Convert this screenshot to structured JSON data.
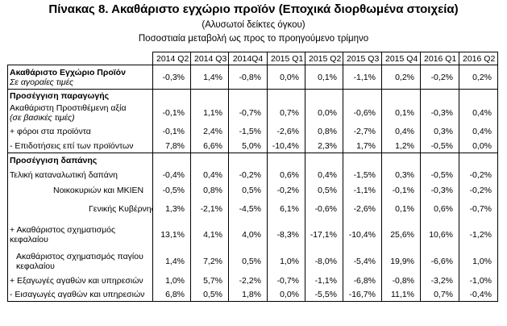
{
  "title": "Πίνακας 8. Ακαθάριστο εγχώριο προϊόν   (Εποχικά διορθωμένα στοιχεία)",
  "subtitle": "(Αλυσωτοί δείκτες όγκου)",
  "note": "Ποσοστιαία μεταβολή ως προς το προηγούμενο τρίμηνο",
  "columns": [
    "2014 Q2",
    "2014 Q3",
    "2014Q4",
    "2015 Q1",
    "2015 Q2",
    "2015 Q3",
    "2015 Q4",
    "2016 Q1",
    "2016 Q2"
  ],
  "rows": [
    {
      "label": "Ακαθάριστο Εγχώριο Προϊόν",
      "label2": "Σε αγοραίες τιμές",
      "values": [
        "-0,3%",
        "1,4%",
        "-0,8%",
        "0,0%",
        "0,1%",
        "-1,1%",
        "0,2%",
        "-0,2%",
        "0,2%"
      ]
    },
    {
      "label": "Προσέγγιση παραγωγής",
      "values": [
        "",
        "",
        "",
        "",
        "",
        "",
        "",
        "",
        ""
      ]
    },
    {
      "label": "Ακαθάριστη Προστιθέμενη αξία",
      "label2": "(σε βασικές τιμές)",
      "values": [
        "-0,1%",
        "1,1%",
        "-0,7%",
        "0,7%",
        "0,0%",
        "-0,6%",
        "0,1%",
        "-0,3%",
        "0,4%"
      ]
    },
    {
      "label": "+ φόροι στα προϊόντα",
      "values": [
        "-0,1%",
        "2,4%",
        "-1,5%",
        "-2,6%",
        "0,8%",
        "-2,7%",
        "0,4%",
        "0,3%",
        "0,4%"
      ]
    },
    {
      "label": "- Επιδοτήσεις επί των προϊόντων",
      "values": [
        "7,8%",
        "6,6%",
        "5,0%",
        "-10,4%",
        "2,3%",
        "1,7%",
        "1,2%",
        "-0,5%",
        "0,0%"
      ]
    },
    {
      "label": "Προσέγγιση δαπάνης",
      "values": [
        "",
        "",
        "",
        "",
        "",
        "",
        "",
        "",
        ""
      ]
    },
    {
      "label": "Τελική καταναλωτική δαπάνη",
      "values": [
        "-0,4%",
        "0,4%",
        "-0,2%",
        "0,6%",
        "0,4%",
        "-1,5%",
        "0,3%",
        "-0,5%",
        "-0,2%"
      ]
    },
    {
      "label": "Νοικοκυριών και ΜΚΙΕΝ",
      "values": [
        "-0,5%",
        "0,8%",
        "0,5%",
        "-0,2%",
        "0,5%",
        "-1,1%",
        "-0,1%",
        "-0,3%",
        "-0,2%"
      ]
    },
    {
      "label": "Γενικής Κυβέρνησης",
      "values": [
        "1,3%",
        "-2,1%",
        "-4,5%",
        "6,1%",
        "-0,6%",
        "-2,6%",
        "0,1%",
        "0,6%",
        "-0,7%"
      ]
    },
    {
      "label": "+ Ακαθάριστος σχηματισμός",
      "label2": "κεφαλαίου",
      "values": [
        "13,1%",
        "4,1%",
        "4,0%",
        "-8,3%",
        "-17,1%",
        "-10,4%",
        "25,6%",
        "10,6%",
        "-1,2%"
      ]
    },
    {
      "label": "Ακαθάριστος σχηματισμός παγίου",
      "label2": "κεφαλαίου",
      "values": [
        "1,4%",
        "7,2%",
        "0,5%",
        "1,0%",
        "-8,0%",
        "-5,4%",
        "19,9%",
        "-6,6%",
        "1,0%"
      ]
    },
    {
      "label": "+ Εξαγωγές αγαθών και υπηρεσιών",
      "values": [
        "1,0%",
        "5,7%",
        "-2,2%",
        "-0,7%",
        "-1,1%",
        "-6,8%",
        "-0,8%",
        "-3,2%",
        "-1,0%"
      ]
    },
    {
      "label": "- Εισαγωγές αγαθών και υπηρεσιών",
      "values": [
        "6,8%",
        "0,5%",
        "1,8%",
        "0,0%",
        "-5,5%",
        "-16,7%",
        "11,1%",
        "0,7%",
        "-0,4%"
      ]
    }
  ]
}
